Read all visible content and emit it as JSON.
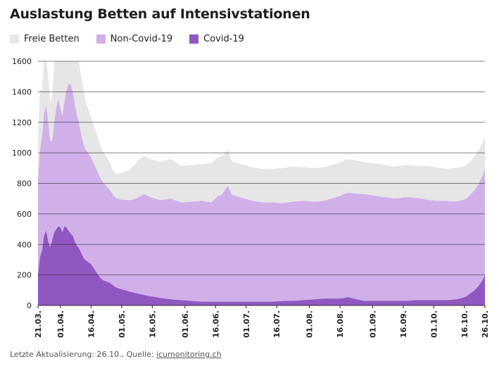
{
  "chart_data": {
    "type": "area",
    "title": "Auslastung Betten auf Intensivstationen",
    "colors": {
      "free": "#e6e6e6",
      "noncovid": "#d1b0ea",
      "covid": "#9157c1",
      "grid": "#222222"
    },
    "legend": [
      {
        "label": "Freie Betten",
        "color": "#e6e6e6"
      },
      {
        "label": "Non-Covid-19",
        "color": "#d1b0ea"
      },
      {
        "label": "Covid-19",
        "color": "#9157c1"
      }
    ],
    "stacking": "stacked",
    "ylim": [
      0,
      1600
    ],
    "yticks": [
      "0",
      "200",
      "400",
      "600",
      "800",
      "1000",
      "1200",
      "1400",
      "1600"
    ],
    "xtick_labels": [
      "21.03.",
      "01.04.",
      "16.04.",
      "01.05.",
      "16.05.",
      "01.06.",
      "16.06.",
      "01.07.",
      "16.07.",
      "01.08.",
      "16.08.",
      "01.09.",
      "16.09.",
      "01.10.",
      "16.10.",
      "26.10."
    ],
    "xtick_days": [
      0,
      11,
      26,
      41,
      56,
      72,
      87,
      102,
      117,
      133,
      148,
      164,
      179,
      194,
      209,
      219
    ],
    "days_start": "21.03.",
    "days_end": "26.10.",
    "series": [
      {
        "name": "Covid-19",
        "points": [
          [
            0,
            200
          ],
          [
            1,
            320
          ],
          [
            2,
            360
          ],
          [
            3,
            460
          ],
          [
            4,
            490
          ],
          [
            5,
            420
          ],
          [
            6,
            380
          ],
          [
            7,
            430
          ],
          [
            8,
            480
          ],
          [
            9,
            500
          ],
          [
            10,
            520
          ],
          [
            11,
            510
          ],
          [
            12,
            480
          ],
          [
            13,
            520
          ],
          [
            14,
            510
          ],
          [
            15,
            490
          ],
          [
            16,
            470
          ],
          [
            17,
            460
          ],
          [
            18,
            420
          ],
          [
            19,
            390
          ],
          [
            20,
            380
          ],
          [
            21,
            350
          ],
          [
            22,
            320
          ],
          [
            23,
            300
          ],
          [
            24,
            290
          ],
          [
            25,
            280
          ],
          [
            26,
            270
          ],
          [
            27,
            250
          ],
          [
            28,
            230
          ],
          [
            29,
            210
          ],
          [
            30,
            190
          ],
          [
            31,
            175
          ],
          [
            32,
            165
          ],
          [
            33,
            160
          ],
          [
            34,
            155
          ],
          [
            35,
            150
          ],
          [
            36,
            140
          ],
          [
            37,
            130
          ],
          [
            38,
            120
          ],
          [
            40,
            110
          ],
          [
            45,
            90
          ],
          [
            50,
            75
          ],
          [
            55,
            60
          ],
          [
            60,
            50
          ],
          [
            65,
            40
          ],
          [
            70,
            35
          ],
          [
            75,
            30
          ],
          [
            80,
            25
          ],
          [
            85,
            25
          ],
          [
            90,
            25
          ],
          [
            95,
            25
          ],
          [
            100,
            25
          ],
          [
            105,
            25
          ],
          [
            110,
            25
          ],
          [
            115,
            25
          ],
          [
            120,
            30
          ],
          [
            125,
            30
          ],
          [
            130,
            35
          ],
          [
            135,
            40
          ],
          [
            140,
            45
          ],
          [
            145,
            45
          ],
          [
            148,
            45
          ],
          [
            152,
            55
          ],
          [
            156,
            40
          ],
          [
            160,
            30
          ],
          [
            165,
            30
          ],
          [
            170,
            30
          ],
          [
            175,
            30
          ],
          [
            180,
            30
          ],
          [
            185,
            35
          ],
          [
            190,
            35
          ],
          [
            195,
            35
          ],
          [
            200,
            35
          ],
          [
            205,
            40
          ],
          [
            208,
            50
          ],
          [
            210,
            60
          ],
          [
            212,
            80
          ],
          [
            214,
            100
          ],
          [
            216,
            130
          ],
          [
            218,
            170
          ],
          [
            219,
            200
          ]
        ]
      },
      {
        "name": "Non-Covid-19",
        "points": [
          [
            0,
            620
          ],
          [
            1,
            700
          ],
          [
            2,
            750
          ],
          [
            3,
            800
          ],
          [
            4,
            820
          ],
          [
            5,
            780
          ],
          [
            6,
            700
          ],
          [
            7,
            650
          ],
          [
            8,
            720
          ],
          [
            9,
            800
          ],
          [
            10,
            830
          ],
          [
            11,
            780
          ],
          [
            12,
            760
          ],
          [
            13,
            820
          ],
          [
            14,
            900
          ],
          [
            15,
            960
          ],
          [
            16,
            980
          ],
          [
            17,
            940
          ],
          [
            18,
            900
          ],
          [
            19,
            860
          ],
          [
            20,
            820
          ],
          [
            21,
            780
          ],
          [
            22,
            750
          ],
          [
            23,
            730
          ],
          [
            24,
            720
          ],
          [
            25,
            710
          ],
          [
            26,
            700
          ],
          [
            27,
            690
          ],
          [
            28,
            680
          ],
          [
            29,
            670
          ],
          [
            30,
            660
          ],
          [
            31,
            650
          ],
          [
            32,
            640
          ],
          [
            33,
            630
          ],
          [
            34,
            620
          ],
          [
            35,
            610
          ],
          [
            36,
            600
          ],
          [
            37,
            590
          ],
          [
            38,
            585
          ],
          [
            40,
            585
          ],
          [
            45,
            600
          ],
          [
            48,
            620
          ],
          [
            50,
            640
          ],
          [
            52,
            660
          ],
          [
            55,
            650
          ],
          [
            60,
            640
          ],
          [
            65,
            660
          ],
          [
            70,
            640
          ],
          [
            75,
            650
          ],
          [
            80,
            660
          ],
          [
            85,
            650
          ],
          [
            88,
            690
          ],
          [
            90,
            700
          ],
          [
            93,
            760
          ],
          [
            95,
            700
          ],
          [
            100,
            680
          ],
          [
            105,
            660
          ],
          [
            110,
            650
          ],
          [
            115,
            650
          ],
          [
            120,
            640
          ],
          [
            125,
            650
          ],
          [
            130,
            650
          ],
          [
            135,
            640
          ],
          [
            140,
            640
          ],
          [
            145,
            660
          ],
          [
            150,
            680
          ],
          [
            155,
            690
          ],
          [
            160,
            700
          ],
          [
            165,
            690
          ],
          [
            170,
            680
          ],
          [
            175,
            670
          ],
          [
            180,
            680
          ],
          [
            185,
            670
          ],
          [
            190,
            660
          ],
          [
            195,
            650
          ],
          [
            200,
            650
          ],
          [
            205,
            640
          ],
          [
            210,
            640
          ],
          [
            215,
            660
          ],
          [
            219,
            690
          ]
        ]
      },
      {
        "name": "Freie Betten",
        "points": [
          [
            0,
            280
          ],
          [
            1,
            400
          ],
          [
            2,
            300
          ],
          [
            3,
            400
          ],
          [
            4,
            500
          ],
          [
            5,
            300
          ],
          [
            6,
            250
          ],
          [
            7,
            300
          ],
          [
            8,
            400
          ],
          [
            9,
            500
          ],
          [
            10,
            480
          ],
          [
            11,
            600
          ],
          [
            12,
            500
          ],
          [
            13,
            700
          ],
          [
            14,
            650
          ],
          [
            15,
            620
          ],
          [
            16,
            600
          ],
          [
            17,
            550
          ],
          [
            18,
            450
          ],
          [
            19,
            440
          ],
          [
            20,
            400
          ],
          [
            21,
            380
          ],
          [
            22,
            370
          ],
          [
            23,
            330
          ],
          [
            24,
            300
          ],
          [
            25,
            280
          ],
          [
            26,
            260
          ],
          [
            27,
            250
          ],
          [
            28,
            240
          ],
          [
            29,
            230
          ],
          [
            30,
            220
          ],
          [
            31,
            210
          ],
          [
            32,
            200
          ],
          [
            33,
            195
          ],
          [
            34,
            190
          ],
          [
            35,
            180
          ],
          [
            36,
            170
          ],
          [
            37,
            160
          ],
          [
            38,
            160
          ],
          [
            40,
            170
          ],
          [
            45,
            200
          ],
          [
            50,
            250
          ],
          [
            55,
            250
          ],
          [
            60,
            250
          ],
          [
            65,
            260
          ],
          [
            70,
            240
          ],
          [
            75,
            240
          ],
          [
            80,
            240
          ],
          [
            85,
            260
          ],
          [
            90,
            250
          ],
          [
            95,
            220
          ],
          [
            100,
            220
          ],
          [
            105,
            220
          ],
          [
            110,
            220
          ],
          [
            115,
            220
          ],
          [
            120,
            230
          ],
          [
            125,
            230
          ],
          [
            130,
            220
          ],
          [
            135,
            220
          ],
          [
            140,
            220
          ],
          [
            145,
            220
          ],
          [
            150,
            220
          ],
          [
            155,
            220
          ],
          [
            160,
            210
          ],
          [
            165,
            210
          ],
          [
            170,
            210
          ],
          [
            175,
            210
          ],
          [
            180,
            210
          ],
          [
            185,
            210
          ],
          [
            190,
            220
          ],
          [
            195,
            220
          ],
          [
            200,
            210
          ],
          [
            205,
            220
          ],
          [
            210,
            220
          ],
          [
            215,
            220
          ],
          [
            219,
            220
          ]
        ]
      }
    ]
  },
  "footer": {
    "text": "Letzte Aktualisierung: 26.10., Quelle: ",
    "source_link": "icumonitoring.ch"
  }
}
